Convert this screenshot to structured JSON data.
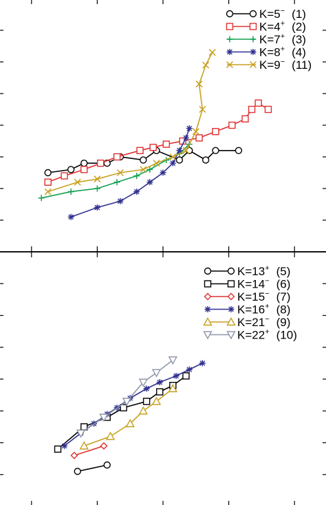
{
  "chart_data": [
    {
      "type": "line",
      "legend_position": "top-right",
      "grid": false,
      "xlim": [
        0,
        10
      ],
      "ylim": [
        0,
        8
      ],
      "series": [
        {
          "name": "K=5",
          "parity": "−",
          "label": "(1)",
          "color": "#000000",
          "marker": "circle",
          "points": [
            [
              1.5,
              2.5
            ],
            [
              2.2,
              2.6
            ],
            [
              2.6,
              2.8
            ],
            [
              3.3,
              2.8
            ],
            [
              3.7,
              3.0
            ],
            [
              4.4,
              2.9
            ],
            [
              4.8,
              3.2
            ],
            [
              5.5,
              2.9
            ],
            [
              5.8,
              3.2
            ],
            [
              6.3,
              2.9
            ],
            [
              6.6,
              3.2
            ],
            [
              7.3,
              3.2
            ]
          ]
        },
        {
          "name": "K=4",
          "parity": "+",
          "label": "(2)",
          "color": "#e03030",
          "marker": "square",
          "points": [
            [
              1.5,
              2.2
            ],
            [
              2.0,
              2.4
            ],
            [
              2.6,
              2.6
            ],
            [
              3.1,
              2.8
            ],
            [
              3.6,
              3.0
            ],
            [
              4.3,
              3.2
            ],
            [
              4.7,
              3.3
            ],
            [
              5.1,
              3.4
            ],
            [
              5.6,
              3.5
            ],
            [
              6.1,
              3.6
            ],
            [
              6.6,
              3.8
            ],
            [
              7.1,
              4.0
            ],
            [
              7.5,
              4.2
            ],
            [
              7.7,
              4.5
            ],
            [
              7.9,
              4.7
            ],
            [
              8.2,
              4.5
            ]
          ]
        },
        {
          "name": "K=7",
          "parity": "+",
          "label": "(3)",
          "color": "#10a050",
          "marker": "plus",
          "points": [
            [
              1.3,
              1.7
            ],
            [
              2.2,
              1.9
            ],
            [
              3.0,
              2.0
            ],
            [
              3.6,
              2.2
            ],
            [
              4.2,
              2.4
            ],
            [
              4.6,
              2.6
            ],
            [
              5.1,
              2.9
            ],
            [
              5.5,
              3.1
            ],
            [
              5.8,
              3.4
            ]
          ]
        },
        {
          "name": "K=8",
          "parity": "+",
          "label": "(4)",
          "color": "#303090",
          "marker": "star",
          "points": [
            [
              2.2,
              1.1
            ],
            [
              3.0,
              1.4
            ],
            [
              3.7,
              1.6
            ],
            [
              4.2,
              1.9
            ],
            [
              4.6,
              2.2
            ],
            [
              5.0,
              2.5
            ],
            [
              5.3,
              2.8
            ],
            [
              5.5,
              3.2
            ],
            [
              5.7,
              3.6
            ],
            [
              5.8,
              3.9
            ]
          ]
        },
        {
          "name": "K=9",
          "parity": "−",
          "label": "(11)",
          "color": "#c8a020",
          "marker": "x",
          "points": [
            [
              1.5,
              1.9
            ],
            [
              2.4,
              2.2
            ],
            [
              3.0,
              2.3
            ],
            [
              3.7,
              2.5
            ],
            [
              4.4,
              2.6
            ],
            [
              4.8,
              2.8
            ],
            [
              5.3,
              3.0
            ],
            [
              5.7,
              3.2
            ],
            [
              6.0,
              3.8
            ],
            [
              6.2,
              4.5
            ],
            [
              6.1,
              5.3
            ],
            [
              6.3,
              5.9
            ],
            [
              6.5,
              6.3
            ]
          ]
        }
      ]
    },
    {
      "type": "line",
      "legend_position": "top-right",
      "grid": false,
      "xlim": [
        0,
        10
      ],
      "ylim": [
        0,
        8
      ],
      "series": [
        {
          "name": "K=13",
          "parity": "+",
          "label": "(5)",
          "color": "#000000",
          "marker": "circle",
          "points": [
            [
              2.4,
              1.1
            ],
            [
              3.3,
              1.3
            ]
          ]
        },
        {
          "name": "K=14",
          "parity": "−",
          "label": "(6)",
          "color": "#000000",
          "marker": "square",
          "points": [
            [
              1.8,
              1.8
            ],
            [
              2.6,
              2.5
            ],
            [
              3.3,
              2.8
            ],
            [
              3.8,
              3.1
            ],
            [
              4.5,
              3.3
            ],
            [
              4.9,
              3.6
            ],
            [
              5.3,
              3.8
            ],
            [
              5.7,
              4.1
            ]
          ]
        },
        {
          "name": "K=15",
          "parity": "−",
          "label": "(7)",
          "color": "#e03030",
          "marker": "diamond",
          "points": [
            [
              2.3,
              1.6
            ],
            [
              3.2,
              1.9
            ]
          ]
        },
        {
          "name": "K=16",
          "parity": "+",
          "label": "(8)",
          "color": "#303090",
          "marker": "star",
          "points": [
            [
              2.0,
              1.9
            ],
            [
              2.5,
              2.3
            ],
            [
              2.9,
              2.6
            ],
            [
              3.3,
              2.9
            ],
            [
              3.6,
              3.1
            ],
            [
              4.0,
              3.4
            ],
            [
              4.5,
              3.7
            ],
            [
              4.9,
              3.9
            ],
            [
              5.4,
              4.1
            ],
            [
              5.8,
              4.3
            ],
            [
              6.2,
              4.5
            ]
          ]
        },
        {
          "name": "K=21",
          "parity": "−",
          "label": "(9)",
          "color": "#c8a020",
          "marker": "triangle-up",
          "points": [
            [
              2.6,
              1.9
            ],
            [
              3.4,
              2.2
            ],
            [
              4.0,
              2.6
            ],
            [
              4.4,
              3.0
            ],
            [
              4.8,
              3.3
            ],
            [
              5.3,
              3.7
            ]
          ]
        },
        {
          "name": "K=22",
          "parity": "+",
          "label": "(10)",
          "color": "#9098a8",
          "marker": "triangle-down",
          "points": [
            [
              2.5,
              2.3
            ],
            [
              3.2,
              2.8
            ],
            [
              3.9,
              3.3
            ],
            [
              4.4,
              3.9
            ],
            [
              4.8,
              4.2
            ],
            [
              5.3,
              4.6
            ]
          ]
        }
      ]
    }
  ]
}
